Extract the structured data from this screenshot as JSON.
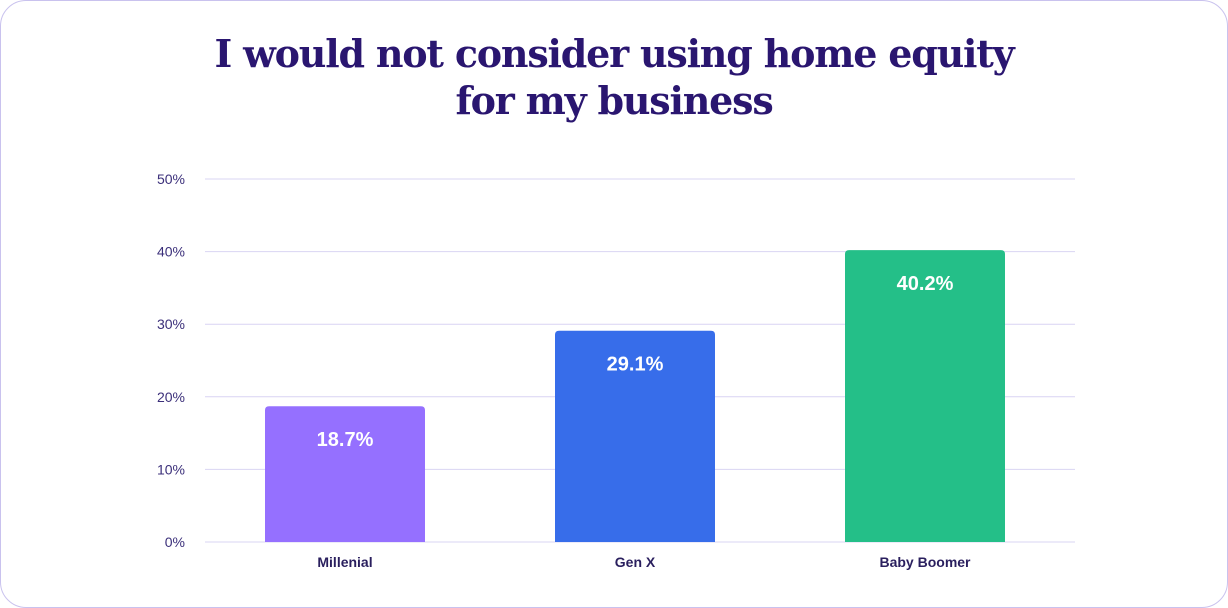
{
  "chart_data": {
    "type": "bar",
    "title_lines": [
      "I would not consider using home equity",
      "for my business"
    ],
    "categories": [
      "Millenial",
      "Gen X",
      "Baby Boomer"
    ],
    "values": [
      18.7,
      29.1,
      40.2
    ],
    "value_labels": [
      "18.7%",
      "29.1%",
      "40.2%"
    ],
    "colors": [
      "#9570ff",
      "#376dea",
      "#24bf88"
    ],
    "ylim": [
      0,
      50
    ],
    "yticks": [
      0,
      10,
      20,
      30,
      40,
      50
    ],
    "ytick_labels": [
      "0%",
      "10%",
      "20%",
      "30%",
      "40%",
      "50%"
    ],
    "grid": true,
    "grid_color": "#d9d4f3",
    "xlabel": "",
    "ylabel": ""
  }
}
